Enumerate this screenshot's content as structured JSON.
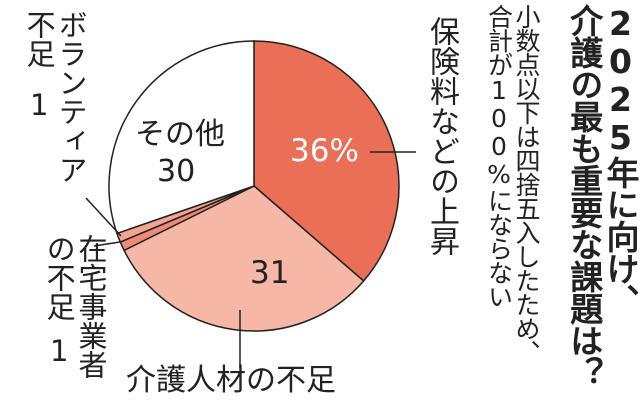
{
  "chart_data": {
    "type": "pie",
    "title": "2025年に向け、\n介護の最も重要な課題は？",
    "subtitle": "小数点以下は四捨五入したため、\n合計が100%にならない",
    "categories": [
      "保険料などの上昇",
      "介護人材の不足",
      "在宅事業者\nの不足",
      "ボランティア\n不足",
      "その他"
    ],
    "values": [
      36,
      31,
      1,
      1,
      30
    ],
    "value_labels": [
      "36%",
      "31",
      "1",
      "1",
      "30"
    ],
    "colors": [
      "#eb6e57",
      "#f6b7a6",
      "#ef8b74",
      "#f4a591",
      "#ffffff"
    ]
  }
}
